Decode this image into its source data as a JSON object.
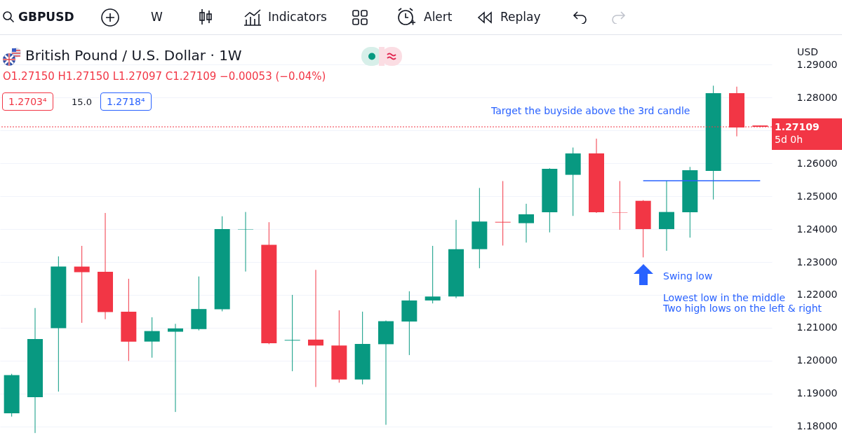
{
  "chart_data": {
    "type": "candlestick",
    "title": "British Pound / U.S. Dollar · 1W",
    "subtitle": "O1.27150 H1.27150 L1.27097 C1.27109 −0.00053 (−0.04%)",
    "categories": [
      null,
      null,
      null,
      null,
      null,
      null,
      null,
      null,
      null,
      null,
      null,
      null,
      null,
      null,
      null,
      null,
      null,
      null,
      null,
      null,
      null,
      null,
      null,
      null,
      null,
      null,
      null,
      null,
      null,
      null,
      null,
      null,
      null
    ],
    "ohlc": [
      [
        1.184,
        1.196,
        1.183,
        1.1956
      ],
      [
        1.1889,
        1.216,
        1.178,
        1.2066
      ],
      [
        1.2099,
        1.2317,
        1.1906,
        1.2286
      ],
      [
        1.2286,
        1.2349,
        1.2115,
        1.2269
      ],
      [
        1.227,
        1.2449,
        1.2126,
        1.2148
      ],
      [
        1.2149,
        1.2249,
        1.1999,
        1.2058
      ],
      [
        1.2058,
        1.2132,
        1.2009,
        1.209
      ],
      [
        1.2088,
        1.2112,
        1.1844,
        1.2098
      ],
      [
        1.2096,
        1.2256,
        1.2092,
        1.2157
      ],
      [
        1.2156,
        1.2439,
        1.215,
        1.24
      ],
      [
        1.2399,
        1.2452,
        1.2271,
        1.24
      ],
      [
        1.2352,
        1.2421,
        1.205,
        1.2053
      ],
      [
        1.2061,
        1.22,
        1.1968,
        1.2063
      ],
      [
        1.2064,
        1.2276,
        1.192,
        1.2046
      ],
      [
        1.2046,
        1.2153,
        1.1933,
        1.1943
      ],
      [
        1.1943,
        1.2149,
        1.1928,
        1.2051
      ],
      [
        1.205,
        1.2122,
        1.1805,
        1.212
      ],
      [
        1.2119,
        1.2211,
        1.2017,
        1.2183
      ],
      [
        1.2183,
        1.2349,
        1.2174,
        1.2195
      ],
      [
        1.2195,
        1.2428,
        1.219,
        1.2339
      ],
      [
        1.2339,
        1.2525,
        1.2281,
        1.2423
      ],
      [
        1.2422,
        1.2546,
        1.235,
        1.242
      ],
      [
        1.2418,
        1.2477,
        1.2359,
        1.2445
      ],
      [
        1.2451,
        1.2585,
        1.239,
        1.2583
      ],
      [
        1.2565,
        1.2648,
        1.244,
        1.263
      ],
      [
        1.263,
        1.2675,
        1.2449,
        1.2451
      ],
      [
        1.2451,
        1.2546,
        1.2398,
        1.245
      ],
      [
        1.2486,
        1.2488,
        1.2314,
        1.24
      ],
      [
        1.24,
        1.2547,
        1.2334,
        1.2452
      ],
      [
        1.2451,
        1.2589,
        1.2374,
        1.2579
      ],
      [
        1.2577,
        1.2836,
        1.249,
        1.2813
      ],
      [
        1.2813,
        1.2833,
        1.2682,
        1.2709
      ],
      [
        1.2715,
        1.2715,
        1.27097,
        1.27109
      ]
    ],
    "colors": [
      "#089981",
      "#089981",
      "#089981",
      "#f23645",
      "#f23645",
      "#f23645",
      "#089981",
      "#089981",
      "#089981",
      "#089981",
      "#089981",
      "#f23645",
      "#089981",
      "#f23645",
      "#f23645",
      "#089981",
      "#089981",
      "#089981",
      "#089981",
      "#089981",
      "#089981",
      "#f23645",
      "#089981",
      "#089981",
      "#089981",
      "#f23645",
      "#f23645",
      "#f23645",
      "#089981",
      "#089981",
      "#089981",
      "#f23645",
      "#f23645"
    ],
    "series": [
      {
        "type": "line",
        "color": "#2962ff",
        "values": [
          null,
          null,
          null,
          null,
          null,
          null,
          null,
          null,
          null,
          null,
          null,
          null,
          null,
          null,
          null,
          null,
          null,
          null,
          null,
          null,
          null,
          null,
          null,
          null,
          null,
          null,
          null,
          1.2547,
          1.2547,
          1.2547,
          1.2547,
          1.2547,
          1.2547
        ]
      }
    ],
    "ylim": [
      1.1774,
      1.299
    ],
    "yticks": [
      {
        "value": 1.18,
        "label": "1.18000"
      },
      {
        "value": 1.19,
        "label": "1.19000"
      },
      {
        "value": 1.2,
        "label": "1.20000"
      },
      {
        "value": 1.21,
        "label": "1.21000"
      },
      {
        "value": 1.22,
        "label": "1.22000"
      },
      {
        "value": 1.23,
        "label": "1.23000"
      },
      {
        "value": 1.24,
        "label": "1.24000"
      },
      {
        "value": 1.25,
        "label": "1.25000"
      },
      {
        "value": 1.26,
        "label": "1.26000"
      },
      {
        "value": 1.27,
        "label": null
      },
      {
        "value": 1.28,
        "label": "1.28000"
      },
      {
        "value": 1.29,
        "label": "1.29000"
      }
    ],
    "tick_labels": "y",
    "grid": "y",
    "ref_lines": [
      {
        "axis": "y",
        "value": 1.27109,
        "label": "1.27109",
        "color": "#f23645",
        "line_style": "dotted"
      }
    ],
    "annotations": [
      "GBPUSD",
      "W",
      "Indicators",
      "Alert",
      "Replay",
      "1.2703⁴",
      "15.0",
      "1.2718⁴",
      "USD",
      "5d 0h",
      "Target the buyside above the 3rd candle",
      "Swing low",
      "Lowest low in the middle",
      "Two high lows on the left & right"
    ]
  }
}
